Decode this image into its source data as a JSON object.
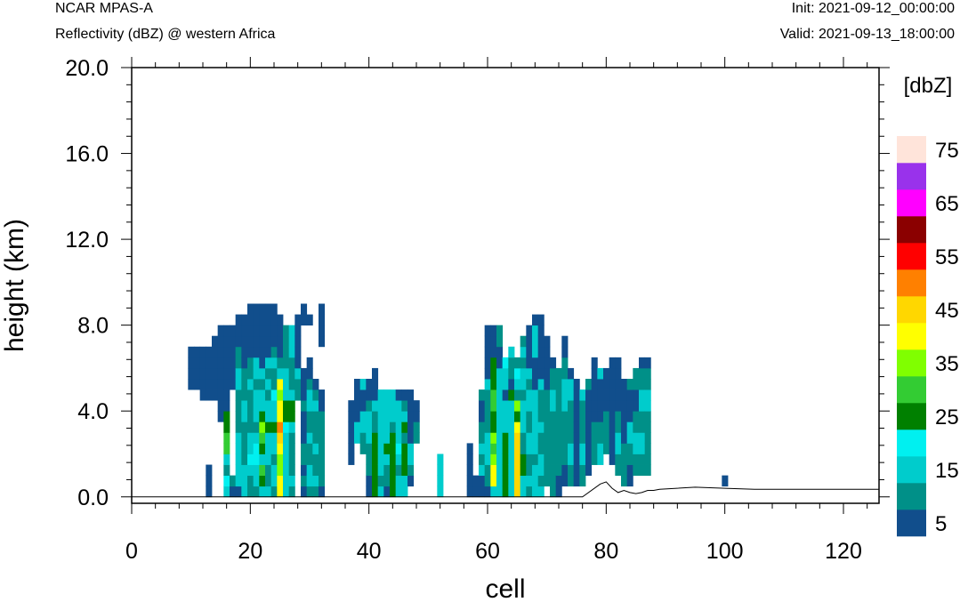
{
  "header": {
    "model": "NCAR MPAS-A",
    "field": "Reflectivity (dBZ) @ western Africa",
    "init": "Init: 2021-09-12_00:00:00",
    "valid": "Valid: 2021-09-13_18:00:00"
  },
  "colorbar": {
    "units": "[dbZ]",
    "labels": [
      "5",
      "15",
      "25",
      "35",
      "45",
      "55",
      "65",
      "75"
    ],
    "colors": [
      "#114e8c",
      "#009088",
      "#00cccc",
      "#00f0f0",
      "#008000",
      "#33cc33",
      "#80ff00",
      "#ffff00",
      "#ffd700",
      "#ff8000",
      "#ff0000",
      "#8b0000",
      "#ff00ff",
      "#9932eb",
      "#ffe4da"
    ]
  },
  "chart_data": {
    "type": "heatmap",
    "title": "Reflectivity (dBZ) @ western Africa",
    "xlabel": "cell",
    "ylabel": "height (km)",
    "xlim": [
      0,
      126
    ],
    "ylim": [
      -0.3,
      20.0
    ],
    "xticks": [
      0,
      20,
      40,
      60,
      80,
      100,
      120
    ],
    "xtick_labels": [
      "0",
      "20",
      "40",
      "60",
      "80",
      "100",
      "120"
    ],
    "yticks": [
      0,
      4,
      8,
      12,
      16,
      20
    ],
    "ytick_labels": [
      "0.0",
      "4.0",
      "8.0",
      "12.0",
      "16.0",
      "20.0"
    ],
    "levels_dBZ": [
      5,
      10,
      15,
      20,
      25,
      30,
      35,
      40,
      45,
      50,
      55,
      60,
      65,
      70,
      75
    ],
    "cell_height_km": 0.5,
    "columns": [
      {
        "x": 10,
        "z0": 5.0,
        "levels": [
          5,
          5,
          5,
          5
        ]
      },
      {
        "x": 11,
        "z0": 5.0,
        "levels": [
          5,
          5,
          5,
          5
        ]
      },
      {
        "x": 12,
        "z0": 4.5,
        "levels": [
          5,
          5,
          5,
          5,
          5
        ]
      },
      {
        "x": 13,
        "z0": 0.0,
        "levels": [
          5,
          5,
          5,
          0,
          0,
          0,
          0,
          0,
          0,
          5,
          5,
          5,
          5,
          5
        ]
      },
      {
        "x": 14,
        "z0": 4.5,
        "levels": [
          5,
          5,
          5,
          5,
          5,
          5
        ]
      },
      {
        "x": 15,
        "z0": 3.5,
        "levels": [
          5,
          5,
          5,
          5,
          5,
          5,
          5,
          5,
          5
        ]
      },
      {
        "x": 16,
        "z0": 0.0,
        "levels": [
          15,
          20,
          10,
          15,
          30,
          30,
          25,
          25,
          5,
          5,
          5,
          5,
          5,
          5,
          5,
          5
        ]
      },
      {
        "x": 17,
        "z0": 0.0,
        "levels": [
          5,
          10,
          0,
          0,
          0,
          0,
          0,
          0,
          0,
          0,
          5,
          5,
          5,
          5,
          5,
          5
        ]
      },
      {
        "x": 18,
        "z0": 0.0,
        "levels": [
          5,
          15,
          15,
          15,
          15,
          15,
          10,
          10,
          10,
          10,
          15,
          15,
          10,
          10,
          5,
          5,
          5
        ]
      },
      {
        "x": 19,
        "z0": 0.0,
        "levels": [
          15,
          15,
          15,
          10,
          10,
          10,
          10,
          15,
          15,
          10,
          10,
          10,
          5,
          5,
          5,
          5,
          5
        ]
      },
      {
        "x": 20,
        "z0": 0.0,
        "levels": [
          10,
          10,
          15,
          20,
          15,
          15,
          10,
          10,
          10,
          10,
          15,
          10,
          10,
          5,
          5,
          5,
          5,
          5
        ]
      },
      {
        "x": 21,
        "z0": 0.0,
        "levels": [
          10,
          15,
          15,
          20,
          20,
          15,
          10,
          15,
          15,
          15,
          10,
          15,
          15,
          5,
          5,
          5,
          5,
          5
        ]
      },
      {
        "x": 22,
        "z0": 0.0,
        "levels": [
          15,
          25,
          30,
          15,
          25,
          30,
          35,
          25,
          15,
          15,
          10,
          15,
          5,
          5,
          5,
          5,
          5,
          5
        ]
      },
      {
        "x": 23,
        "z0": 0.0,
        "levels": [
          15,
          10,
          10,
          15,
          15,
          15,
          25,
          15,
          15,
          10,
          15,
          10,
          15,
          5,
          5,
          5,
          5,
          5
        ]
      },
      {
        "x": 24,
        "z0": 0.0,
        "levels": [
          10,
          15,
          15,
          10,
          15,
          15,
          25,
          15,
          15,
          20,
          10,
          10,
          15,
          10,
          5,
          5,
          5,
          5
        ]
      },
      {
        "x": 25,
        "z0": 0.0,
        "levels": [
          40,
          40,
          35,
          35,
          40,
          45,
          50,
          40,
          40,
          35,
          40,
          15,
          10,
          5,
          5,
          5,
          5
        ]
      },
      {
        "x": 26,
        "z0": 0.0,
        "levels": [
          15,
          15,
          15,
          15,
          15,
          15,
          20,
          25,
          25,
          15,
          15,
          15,
          10,
          10,
          10,
          10
        ]
      },
      {
        "x": 27,
        "z0": 0.0,
        "levels": [
          10,
          15,
          10,
          10,
          10,
          10,
          15,
          25,
          25,
          15,
          10,
          10,
          10,
          15,
          15,
          15
        ]
      },
      {
        "x": 28,
        "z0": 4.5,
        "levels": [
          10,
          10,
          15,
          5,
          5,
          5,
          5,
          5
        ]
      },
      {
        "x": 29,
        "z0": 0.0,
        "levels": [
          5,
          10,
          5,
          10,
          10,
          5,
          5,
          5,
          10,
          5,
          5,
          5,
          0,
          0,
          0,
          0,
          5,
          5
        ]
      },
      {
        "x": 30,
        "z0": 0.0,
        "levels": [
          10,
          15,
          15,
          10,
          10,
          15,
          10,
          10,
          15,
          15,
          10,
          5,
          5,
          0,
          0,
          0,
          5
        ]
      },
      {
        "x": 31,
        "z0": 0.0,
        "levels": [
          10,
          15,
          10,
          10,
          15,
          10,
          10,
          10,
          15,
          10,
          5
        ]
      },
      {
        "x": 32,
        "z0": 0.0,
        "levels": [
          5,
          10,
          10,
          10,
          10,
          10,
          10,
          10,
          5,
          5,
          0,
          0,
          0,
          0,
          5,
          5,
          5,
          5
        ]
      },
      {
        "x": 37,
        "z0": 1.5,
        "levels": [
          5,
          5,
          5,
          5,
          5,
          5
        ]
      },
      {
        "x": 38,
        "z0": 2.5,
        "levels": [
          15,
          15,
          5,
          5,
          5,
          5
        ]
      },
      {
        "x": 39,
        "z0": 2.0,
        "levels": [
          10,
          10,
          15,
          15,
          5,
          5,
          15
        ]
      },
      {
        "x": 40,
        "z0": 0.0,
        "levels": [
          5,
          5,
          10,
          10,
          10,
          15,
          15,
          15,
          10,
          5,
          5
        ]
      },
      {
        "x": 41,
        "z0": 0.0,
        "levels": [
          25,
          25,
          25,
          25,
          25,
          25,
          10,
          10,
          15,
          5,
          5,
          5
        ]
      },
      {
        "x": 42,
        "z0": 0.0,
        "levels": [
          15,
          10,
          15,
          15,
          15,
          15,
          15,
          15,
          15,
          15
        ]
      },
      {
        "x": 43,
        "z0": 0.0,
        "levels": [
          5,
          10,
          10,
          15,
          25,
          15,
          15,
          15,
          15,
          15
        ]
      },
      {
        "x": 44,
        "z0": 0.0,
        "levels": [
          25,
          25,
          25,
          25,
          25,
          25,
          10,
          15,
          15,
          15
        ]
      },
      {
        "x": 45,
        "z0": 0.0,
        "levels": [
          15,
          15,
          10,
          15,
          20,
          15,
          15,
          15,
          15,
          5
        ]
      },
      {
        "x": 46,
        "z0": 0.0,
        "levels": [
          15,
          15,
          25,
          25,
          25,
          10,
          25,
          15,
          10,
          5
        ]
      },
      {
        "x": 47,
        "z0": 0.5,
        "levels": [
          5,
          10,
          15,
          15,
          5,
          5,
          5,
          5,
          5
        ]
      },
      {
        "x": 48,
        "z0": 2.5,
        "levels": [
          10,
          10,
          5,
          5
        ]
      },
      {
        "x": 52,
        "z0": 0.0,
        "levels": [
          15,
          15,
          15,
          15
        ]
      },
      {
        "x": 57,
        "z0": 0.0,
        "levels": [
          5,
          5,
          5,
          5,
          5
        ]
      },
      {
        "x": 58,
        "z0": 0.0,
        "levels": [
          5,
          5
        ]
      },
      {
        "x": 59,
        "z0": 0.0,
        "levels": [
          5,
          5,
          15,
          10,
          15,
          10,
          10,
          5,
          5,
          10
        ]
      },
      {
        "x": 60,
        "z0": 0.0,
        "levels": [
          5,
          10,
          10,
          15,
          15,
          15,
          10,
          10,
          10,
          10,
          15,
          5,
          5,
          5,
          5,
          5
        ]
      },
      {
        "x": 61,
        "z0": 0.0,
        "levels": [
          15,
          40,
          40,
          35,
          30,
          35,
          25,
          25,
          30,
          30,
          25,
          25,
          25,
          5,
          5,
          5
        ]
      },
      {
        "x": 62,
        "z0": 0.0,
        "levels": [
          15,
          15,
          15,
          15,
          15,
          15,
          15,
          15,
          15,
          15,
          15,
          15,
          5,
          5,
          10,
          10
        ]
      },
      {
        "x": 63,
        "z0": 0.0,
        "levels": [
          25,
          25,
          25,
          25,
          25,
          25,
          15,
          15,
          15,
          5,
          15,
          15,
          20
        ]
      },
      {
        "x": 64,
        "z0": 0.0,
        "levels": [
          15,
          15,
          15,
          15,
          15,
          15,
          15,
          15,
          15,
          25,
          5,
          10,
          10,
          15
        ]
      },
      {
        "x": 65,
        "z0": 0.0,
        "levels": [
          45,
          45,
          45,
          45,
          45,
          45,
          40,
          25,
          35,
          10,
          15,
          20,
          10
        ]
      },
      {
        "x": 66,
        "z0": 0.0,
        "levels": [
          15,
          15,
          25,
          25,
          10,
          10,
          15,
          15,
          15,
          10,
          15,
          15,
          10,
          15,
          10
        ]
      },
      {
        "x": 67,
        "z0": 0.0,
        "levels": [
          10,
          15,
          10,
          10,
          15,
          15,
          10,
          10,
          15,
          15,
          10,
          15,
          5,
          5,
          5,
          5
        ]
      },
      {
        "x": 68,
        "z0": 0.0,
        "levels": [
          15,
          15,
          15,
          10,
          15,
          15,
          15,
          15,
          15,
          15,
          5,
          5,
          5,
          15,
          15,
          15,
          5
        ]
      },
      {
        "x": 69,
        "z0": 0.0,
        "levels": [
          15,
          10,
          15,
          15,
          10,
          10,
          15,
          10,
          10,
          10,
          15,
          5,
          5,
          5,
          5,
          5,
          5
        ]
      },
      {
        "x": 70,
        "z0": 0.5,
        "levels": [
          10,
          10,
          10,
          10,
          10,
          10,
          10,
          10,
          10,
          5,
          5,
          5,
          5,
          5
        ]
      },
      {
        "x": 71,
        "z0": 0.0,
        "levels": [
          10,
          10,
          10,
          10,
          10,
          10,
          10,
          10,
          15,
          15,
          10,
          10,
          5
        ]
      },
      {
        "x": 72,
        "z0": 0.0,
        "levels": [
          5,
          5,
          10,
          10,
          10,
          10,
          10,
          10,
          10,
          10,
          10,
          10
        ]
      },
      {
        "x": 73,
        "z0": 0.5,
        "levels": [
          5,
          5,
          10,
          10,
          10,
          10,
          10,
          15,
          15,
          15,
          10,
          10,
          5,
          5
        ]
      },
      {
        "x": 74,
        "z0": 0.5,
        "levels": [
          10,
          10,
          15,
          15,
          10,
          10,
          10,
          10,
          15,
          15,
          5
        ]
      },
      {
        "x": 75,
        "z0": 0.5,
        "levels": [
          5,
          5,
          5,
          5,
          5,
          5,
          5,
          5,
          5,
          5
        ]
      },
      {
        "x": 76,
        "z0": 0.5,
        "levels": [
          10,
          10,
          15,
          15,
          10,
          10,
          10,
          10,
          15
        ]
      },
      {
        "x": 77,
        "z0": 1.0,
        "levels": [
          5,
          5,
          5,
          5,
          5,
          5,
          5,
          5,
          10
        ]
      },
      {
        "x": 78,
        "z0": 1.5,
        "levels": [
          10,
          10,
          10,
          10,
          5,
          5,
          5,
          5,
          5,
          5
        ]
      },
      {
        "x": 79,
        "z0": 1.5,
        "levels": [
          15,
          15,
          10,
          10,
          5,
          5,
          5,
          5,
          15
        ]
      },
      {
        "x": 80,
        "z0": 2.0,
        "levels": [
          10,
          10,
          10,
          10,
          5,
          5,
          5,
          5
        ]
      },
      {
        "x": 81,
        "z0": 1.5,
        "levels": [
          5,
          5,
          5,
          5,
          5,
          5,
          5,
          5,
          5,
          5
        ]
      },
      {
        "x": 82,
        "z0": 1.0,
        "levels": [
          10,
          10,
          15,
          15,
          10,
          10,
          5,
          5,
          5,
          5,
          5
        ]
      },
      {
        "x": 83,
        "z0": 0.5,
        "levels": [
          10,
          10,
          10,
          10,
          5,
          5,
          5,
          5,
          5,
          5
        ]
      },
      {
        "x": 84,
        "z0": 0.5,
        "levels": [
          5,
          5,
          10,
          10,
          15,
          15,
          5,
          5,
          5,
          10
        ]
      },
      {
        "x": 85,
        "z0": 1.0,
        "levels": [
          10,
          10,
          15,
          15,
          10,
          10,
          5,
          5,
          10,
          10
        ]
      },
      {
        "x": 86,
        "z0": 1.0,
        "levels": [
          10,
          10,
          15,
          15,
          10,
          10,
          15,
          15,
          10,
          10,
          5
        ]
      },
      {
        "x": 87,
        "z0": 1.0,
        "levels": [
          10,
          10,
          10,
          10,
          10,
          10,
          15,
          15,
          10,
          10,
          5
        ]
      },
      {
        "x": 100,
        "z0": 0.5,
        "levels": [
          5
        ]
      }
    ],
    "terrain": [
      [
        0,
        0
      ],
      [
        76,
        0
      ],
      [
        79,
        0.6
      ],
      [
        80,
        0.7
      ],
      [
        81,
        0.4
      ],
      [
        82,
        0.2
      ],
      [
        83,
        0.3
      ],
      [
        84,
        0.2
      ],
      [
        85,
        0.15
      ],
      [
        86,
        0.2
      ],
      [
        87,
        0.3
      ],
      [
        88,
        0.3
      ],
      [
        89,
        0.35
      ],
      [
        95,
        0.45
      ],
      [
        100,
        0.4
      ],
      [
        105,
        0.35
      ],
      [
        115,
        0.35
      ],
      [
        126,
        0.35
      ]
    ]
  }
}
